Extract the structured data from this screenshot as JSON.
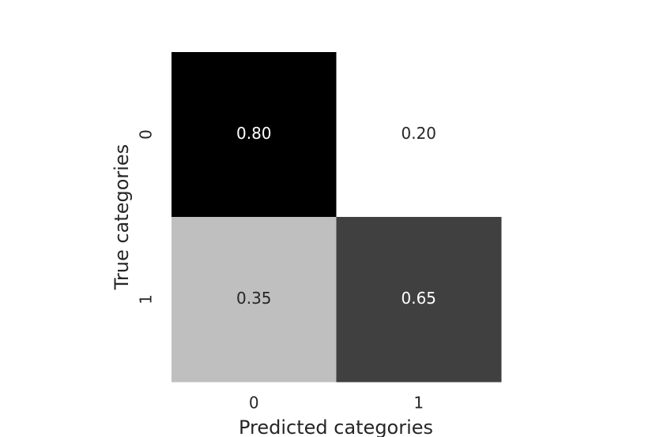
{
  "chart_data": {
    "type": "heatmap",
    "x_label": "Predicted categories",
    "y_label": "True categories",
    "x_categories": [
      "0",
      "1"
    ],
    "y_categories": [
      "0",
      "1"
    ],
    "values": [
      [
        0.8,
        0.2
      ],
      [
        0.35,
        0.65
      ]
    ],
    "value_labels": [
      [
        "0.80",
        "0.20"
      ],
      [
        "0.35",
        "0.65"
      ]
    ],
    "colormap": "Greys"
  }
}
